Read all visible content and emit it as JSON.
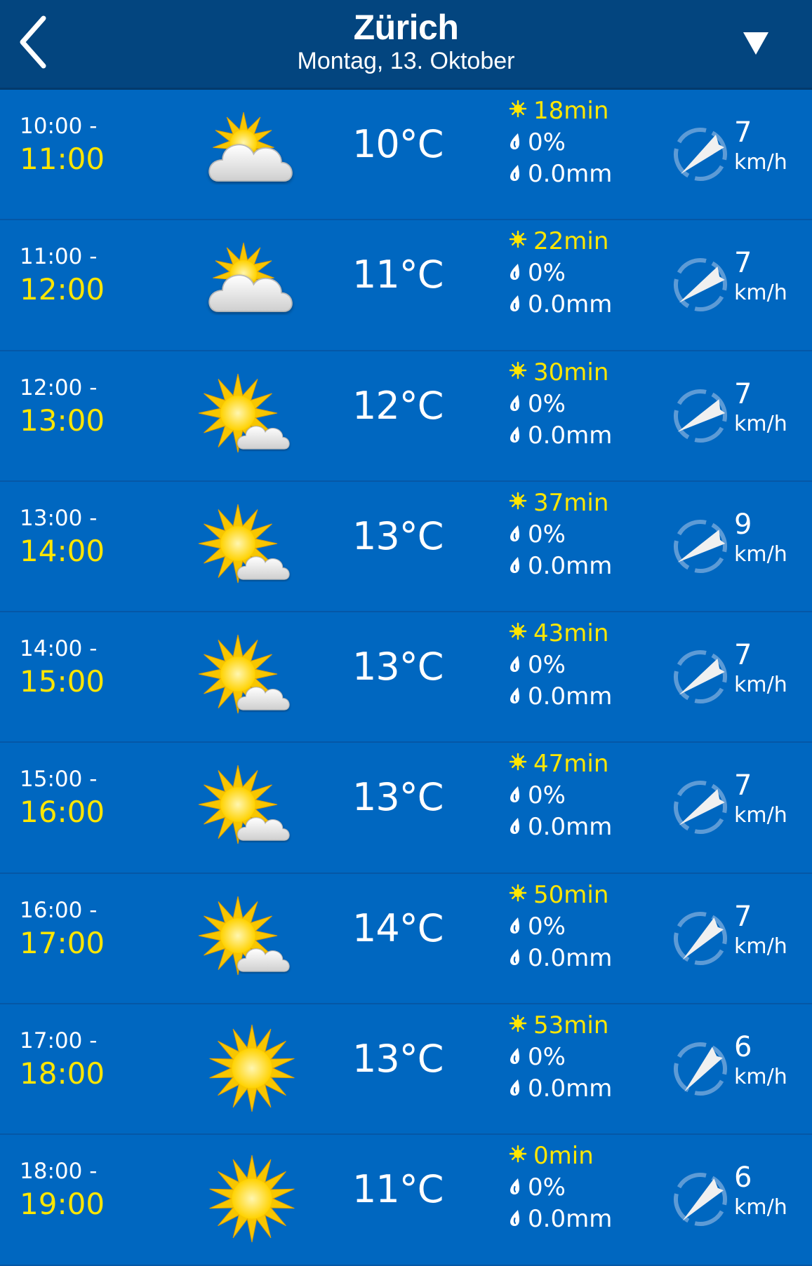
{
  "header": {
    "title": "Zürich",
    "subtitle": "Montag, 13. Oktober",
    "back_icon": "chevron-left-icon",
    "menu_icon": "triangle-down-icon"
  },
  "colors": {
    "header_bg": "#03457f",
    "row_bg": "#0067c0",
    "accent_yellow": "#ffe600"
  },
  "rows": [
    {
      "from": "10:00 -",
      "to": "11:00",
      "icon": "sun-behind-cloud",
      "temp": "10°C",
      "sun": "18min",
      "rain_prob": "0%",
      "rain_amount": "0.0mm",
      "wind_speed": "7",
      "wind_unit": "km/h",
      "wind_dir_deg": 45
    },
    {
      "from": "11:00 -",
      "to": "12:00",
      "icon": "sun-behind-cloud",
      "temp": "11°C",
      "sun": "22min",
      "rain_prob": "0%",
      "rain_amount": "0.0mm",
      "wind_speed": "7",
      "wind_unit": "km/h",
      "wind_dir_deg": 50
    },
    {
      "from": "12:00 -",
      "to": "13:00",
      "icon": "sun-small-cloud",
      "temp": "12°C",
      "sun": "30min",
      "rain_prob": "0%",
      "rain_amount": "0.0mm",
      "wind_speed": "7",
      "wind_unit": "km/h",
      "wind_dir_deg": 55
    },
    {
      "from": "13:00 -",
      "to": "14:00",
      "icon": "sun-small-cloud",
      "temp": "13°C",
      "sun": "37min",
      "rain_prob": "0%",
      "rain_amount": "0.0mm",
      "wind_speed": "9",
      "wind_unit": "km/h",
      "wind_dir_deg": 55
    },
    {
      "from": "14:00 -",
      "to": "15:00",
      "icon": "sun-small-cloud",
      "temp": "13°C",
      "sun": "43min",
      "rain_prob": "0%",
      "rain_amount": "0.0mm",
      "wind_speed": "7",
      "wind_unit": "km/h",
      "wind_dir_deg": 50
    },
    {
      "from": "15:00 -",
      "to": "16:00",
      "icon": "sun-small-cloud",
      "temp": "13°C",
      "sun": "47min",
      "rain_prob": "0%",
      "rain_amount": "0.0mm",
      "wind_speed": "7",
      "wind_unit": "km/h",
      "wind_dir_deg": 50
    },
    {
      "from": "16:00 -",
      "to": "17:00",
      "icon": "sun-small-cloud",
      "temp": "14°C",
      "sun": "50min",
      "rain_prob": "0%",
      "rain_amount": "0.0mm",
      "wind_speed": "7",
      "wind_unit": "km/h",
      "wind_dir_deg": 40
    },
    {
      "from": "17:00 -",
      "to": "18:00",
      "icon": "sun",
      "temp": "13°C",
      "sun": "53min",
      "rain_prob": "0%",
      "rain_amount": "0.0mm",
      "wind_speed": "6",
      "wind_unit": "km/h",
      "wind_dir_deg": 35
    },
    {
      "from": "18:00 -",
      "to": "19:00",
      "icon": "sun",
      "temp": "11°C",
      "sun": "0min",
      "rain_prob": "0%",
      "rain_amount": "0.0mm",
      "wind_speed": "6",
      "wind_unit": "km/h",
      "wind_dir_deg": 40
    }
  ]
}
